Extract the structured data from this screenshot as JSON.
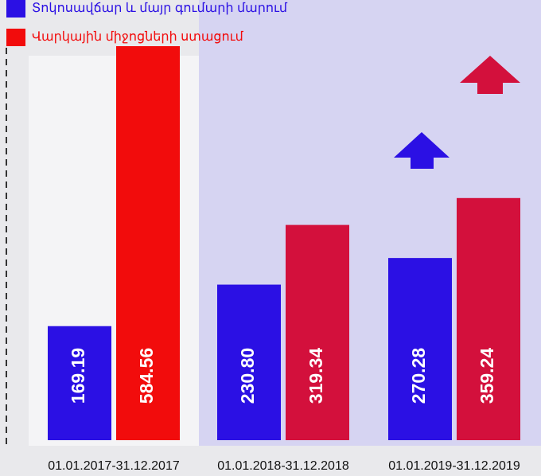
{
  "chart_data": {
    "type": "bar",
    "categories": [
      "01.01.2017-31.12.2017",
      "01.01.2018-31.12.2018",
      "01.01.2019-31.12.2019"
    ],
    "series": [
      {
        "name": "Տոկոսավճար և մայր գումարի մարում",
        "color": "#2b10e4",
        "colors": [
          "#2b10e4",
          "#2b10e4",
          "#2b10e4"
        ],
        "values": [
          169.19,
          230.8,
          270.28
        ],
        "value_labels": [
          "169.19",
          "230.80",
          "270.28"
        ]
      },
      {
        "name": "Վարկային միջոցների ստացում",
        "color": "#f20c0c",
        "colors": [
          "#f20c0c",
          "#d3103c",
          "#d3103c"
        ],
        "values": [
          584.56,
          319.34,
          359.24
        ],
        "value_labels": [
          "584.56",
          "319.34",
          "359.24"
        ]
      }
    ]
  }
}
